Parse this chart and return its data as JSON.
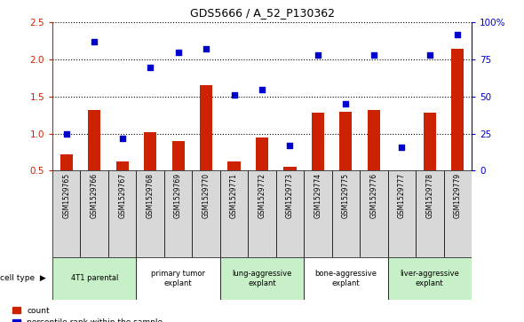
{
  "title": "GDS5666 / A_52_P130362",
  "samples": [
    "GSM1529765",
    "GSM1529766",
    "GSM1529767",
    "GSM1529768",
    "GSM1529769",
    "GSM1529770",
    "GSM1529771",
    "GSM1529772",
    "GSM1529773",
    "GSM1529774",
    "GSM1529775",
    "GSM1529776",
    "GSM1529777",
    "GSM1529778",
    "GSM1529779"
  ],
  "counts": [
    0.72,
    1.32,
    0.62,
    1.02,
    0.9,
    1.65,
    0.63,
    0.95,
    0.55,
    1.28,
    1.3,
    1.32,
    0.5,
    1.28,
    2.14
  ],
  "percentiles": [
    25,
    87,
    22,
    70,
    80,
    82,
    51,
    55,
    17,
    78,
    45,
    78,
    16,
    78,
    92
  ],
  "cell_types": [
    {
      "label": "4T1 parental",
      "start": 0,
      "end": 3,
      "color": "#c8f0c8"
    },
    {
      "label": "primary tumor\nexplant",
      "start": 3,
      "end": 6,
      "color": "#ffffff"
    },
    {
      "label": "lung-aggressive\nexplant",
      "start": 6,
      "end": 9,
      "color": "#c8f0c8"
    },
    {
      "label": "bone-aggressive\nexplant",
      "start": 9,
      "end": 12,
      "color": "#ffffff"
    },
    {
      "label": "liver-aggressive\nexplant",
      "start": 12,
      "end": 15,
      "color": "#c8f0c8"
    }
  ],
  "ylim_left": [
    0.5,
    2.5
  ],
  "ylim_right": [
    0,
    100
  ],
  "yticks_left": [
    0.5,
    1.0,
    1.5,
    2.0,
    2.5
  ],
  "yticks_right": [
    0,
    25,
    50,
    75,
    100
  ],
  "bar_color": "#cc2200",
  "dot_color": "#0000cc",
  "sample_bg": "#d8d8d8",
  "plot_bg": "#ffffff"
}
